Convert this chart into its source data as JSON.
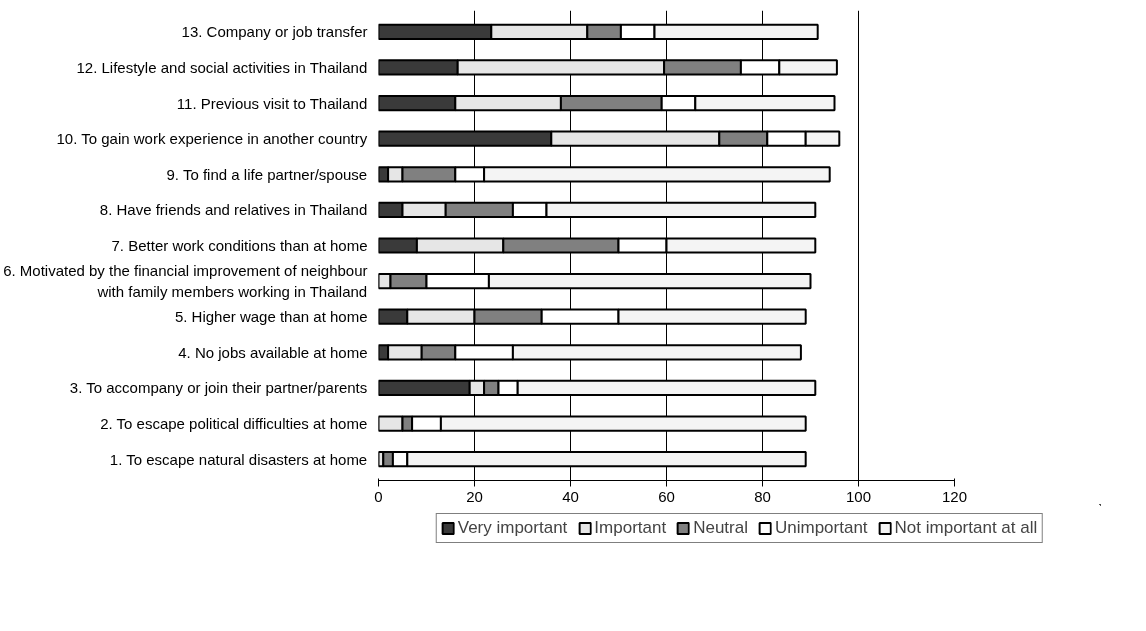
{
  "chart_data": {
    "type": "bar",
    "orientation": "horizontal",
    "stacked": true,
    "categories": [
      "13. Company or job transfer",
      "12. Lifestyle and social activities in Thailand",
      "11. Previous visit to Thailand",
      "10. To gain work experience in another country",
      "9. To find a life partner/spouse",
      "8. Have friends and relatives in Thailand",
      "7. Better work conditions than at home",
      "6. Motivated by the financial improvement of neighbour\nwith family members working in Thailand",
      "5. Higher wage than at home",
      "4. No jobs available at home",
      "3. To accompany or join their partner/parents",
      "2. To escape political difficulties at home",
      "1. To escape natural disasters at home"
    ],
    "series": [
      {
        "name": "Very important",
        "color": "#3a3a3a",
        "values": [
          23.5,
          16.5,
          16,
          36,
          2,
          5,
          8,
          0,
          6,
          2,
          19,
          0,
          0
        ]
      },
      {
        "name": "Important",
        "color": "#e6e6e6",
        "values": [
          20,
          43,
          22,
          35,
          3,
          9,
          18,
          2.5,
          14,
          7,
          3,
          5,
          1
        ]
      },
      {
        "name": "Neutral",
        "color": "#808080",
        "values": [
          7,
          16,
          21,
          10,
          11,
          14,
          24,
          7.5,
          14,
          7,
          3,
          2,
          2
        ]
      },
      {
        "name": "Unimportant",
        "color": "#ffffff",
        "values": [
          7,
          8,
          7,
          8,
          6,
          7,
          10,
          13,
          16,
          12,
          4,
          6,
          3
        ]
      },
      {
        "name": "Not important at all",
        "color": "#f4f4f4",
        "values": [
          34,
          12,
          29,
          7,
          72,
          56,
          31,
          67,
          39,
          60,
          62,
          76,
          83
        ]
      }
    ],
    "xlim": [
      0,
      120
    ],
    "xticks": [
      0,
      20,
      40,
      60,
      80,
      100,
      120
    ],
    "grid": "x",
    "legend": "bottom"
  }
}
